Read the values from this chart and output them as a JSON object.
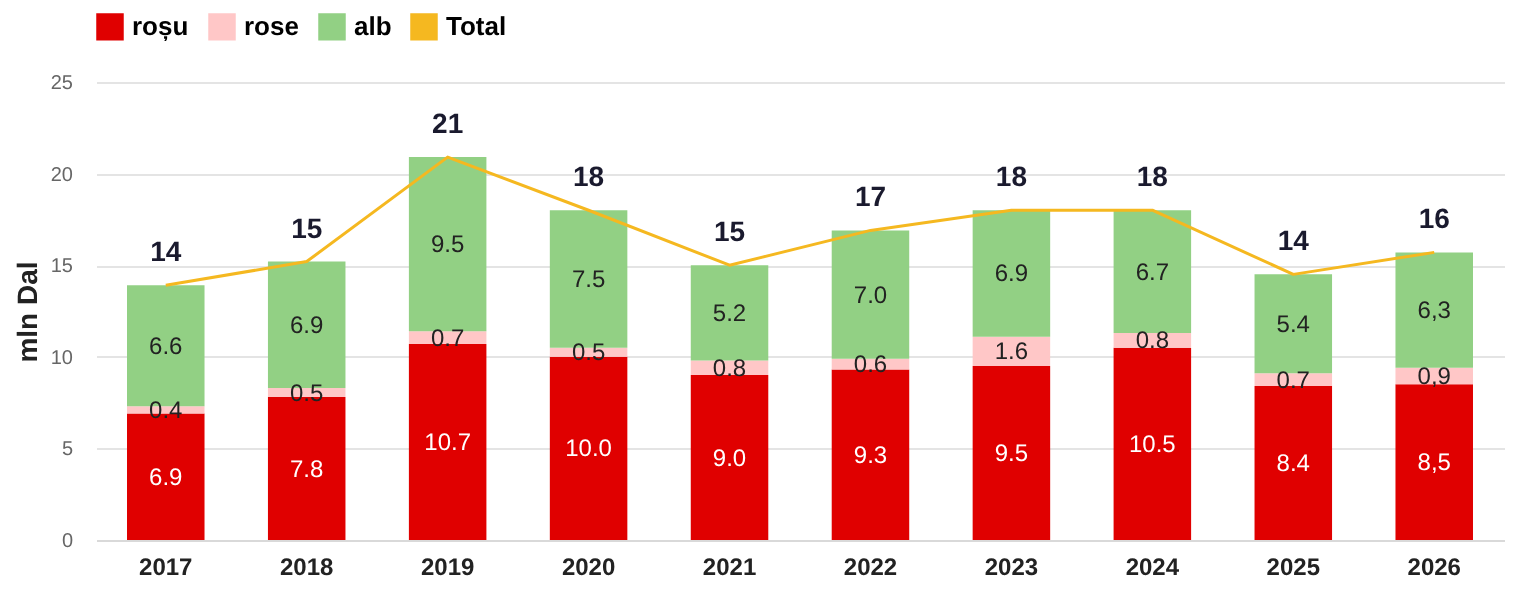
{
  "chart_data": {
    "type": "bar",
    "stacked": true,
    "ylabel": "mln Dal",
    "categories": [
      "2017",
      "2018",
      "2019",
      "2020",
      "2021",
      "2022",
      "2023",
      "2024",
      "2025",
      "2026"
    ],
    "series": [
      {
        "name": "roșu",
        "color": "#e00000",
        "values": [
          6.9,
          7.8,
          10.7,
          10.0,
          9.0,
          9.3,
          9.5,
          10.5,
          8.4,
          8.5
        ],
        "value_labels": [
          "6.9",
          "7.8",
          "10.7",
          "10.0",
          "9.0",
          "9.3",
          "9.5",
          "10.5",
          "8.4",
          "8,5"
        ]
      },
      {
        "name": "rose",
        "color": "#ffc7c7",
        "values": [
          0.4,
          0.5,
          0.7,
          0.5,
          0.8,
          0.6,
          1.6,
          0.8,
          0.7,
          0.9
        ],
        "value_labels": [
          "0.4",
          "0.5",
          "0.7",
          "0.5",
          "0.8",
          "0.6",
          "1.6",
          "0.8",
          "0.7",
          "0,9"
        ]
      },
      {
        "name": "alb",
        "color": "#92d084",
        "values": [
          6.6,
          6.9,
          9.5,
          7.5,
          5.2,
          7.0,
          6.9,
          6.7,
          5.4,
          6.3
        ],
        "value_labels": [
          "6.6",
          "6.9",
          "9.5",
          "7.5",
          "5.2",
          "7.0",
          "6.9",
          "6.7",
          "5.4",
          "6,3"
        ]
      },
      {
        "name": "Total",
        "type": "line",
        "color": "#f5b820",
        "values": [
          13.9,
          15.2,
          20.9,
          18.0,
          15.0,
          16.9,
          18.0,
          18.0,
          14.5,
          15.7
        ]
      }
    ],
    "totals": [
      "14",
      "15",
      "21",
      "18",
      "15",
      "17",
      "18",
      "18",
      "14",
      "16"
    ],
    "ylim": [
      0,
      25
    ],
    "yticks": [
      0,
      5,
      10,
      15,
      20,
      25
    ],
    "grid": "y",
    "legend": "top"
  }
}
